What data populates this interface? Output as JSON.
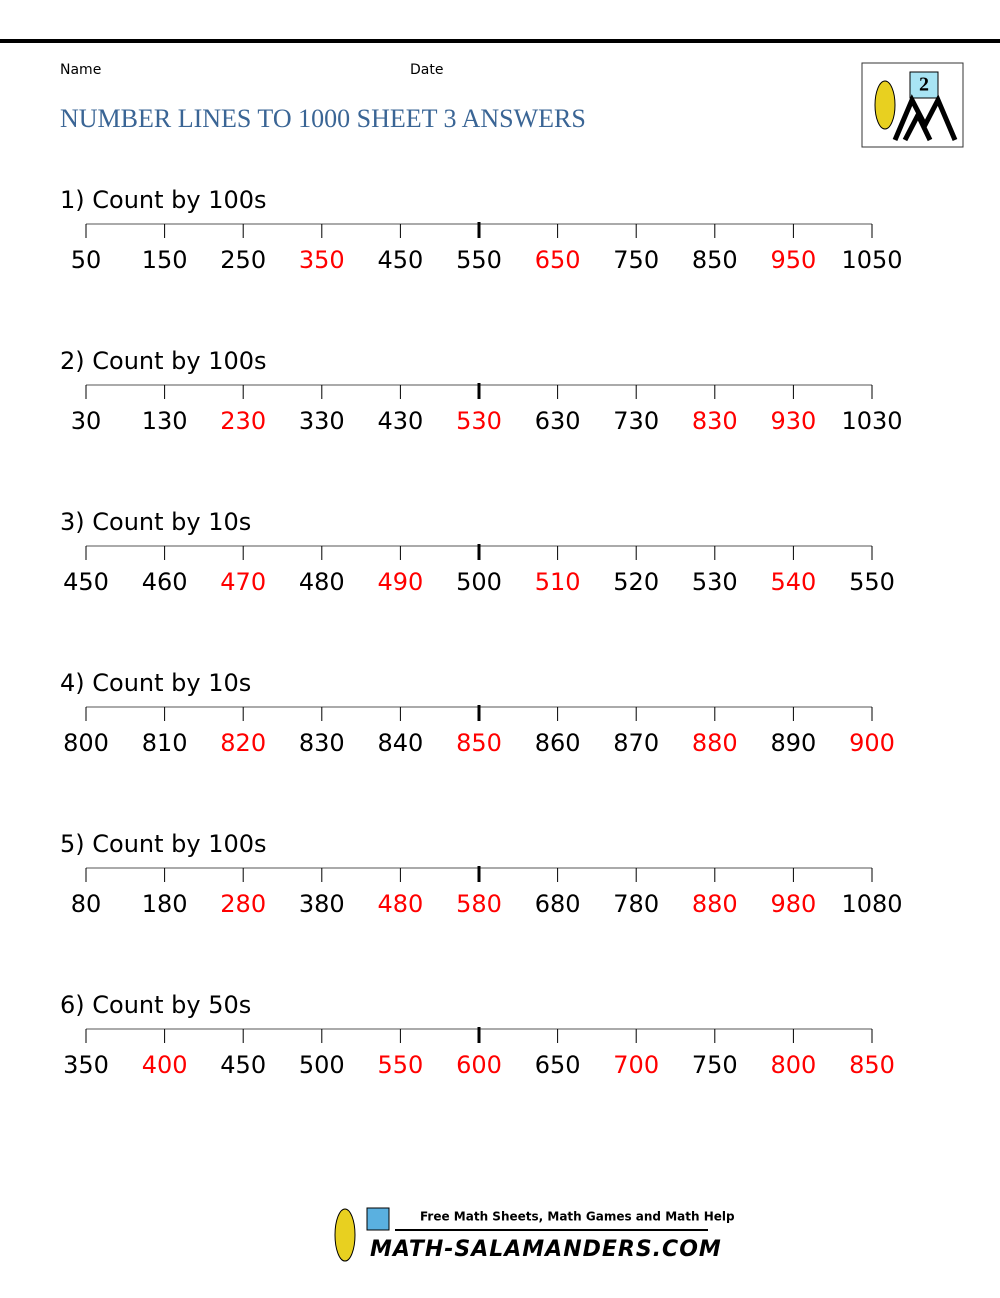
{
  "header": {
    "name_label": "Name",
    "date_label": "Date",
    "title": "NUMBER LINES TO 1000 SHEET 3 ANSWERS",
    "logo_digit": "2"
  },
  "problems": [
    {
      "heading": "1) Count by 100s",
      "numbers": [
        {
          "value": 50,
          "answer": false
        },
        {
          "value": 150,
          "answer": false
        },
        {
          "value": 250,
          "answer": false
        },
        {
          "value": 350,
          "answer": true
        },
        {
          "value": 450,
          "answer": false
        },
        {
          "value": 550,
          "answer": false
        },
        {
          "value": 650,
          "answer": true
        },
        {
          "value": 750,
          "answer": false
        },
        {
          "value": 850,
          "answer": false
        },
        {
          "value": 950,
          "answer": true
        },
        {
          "value": 1050,
          "answer": false
        }
      ]
    },
    {
      "heading": "2) Count by 100s",
      "numbers": [
        {
          "value": 30,
          "answer": false
        },
        {
          "value": 130,
          "answer": false
        },
        {
          "value": 230,
          "answer": true
        },
        {
          "value": 330,
          "answer": false
        },
        {
          "value": 430,
          "answer": false
        },
        {
          "value": 530,
          "answer": true
        },
        {
          "value": 630,
          "answer": false
        },
        {
          "value": 730,
          "answer": false
        },
        {
          "value": 830,
          "answer": true
        },
        {
          "value": 930,
          "answer": true
        },
        {
          "value": 1030,
          "answer": false
        }
      ]
    },
    {
      "heading": "3) Count by 10s",
      "numbers": [
        {
          "value": 450,
          "answer": false
        },
        {
          "value": 460,
          "answer": false
        },
        {
          "value": 470,
          "answer": true
        },
        {
          "value": 480,
          "answer": false
        },
        {
          "value": 490,
          "answer": true
        },
        {
          "value": 500,
          "answer": false
        },
        {
          "value": 510,
          "answer": true
        },
        {
          "value": 520,
          "answer": false
        },
        {
          "value": 530,
          "answer": false
        },
        {
          "value": 540,
          "answer": true
        },
        {
          "value": 550,
          "answer": false
        }
      ]
    },
    {
      "heading": "4) Count by 10s",
      "numbers": [
        {
          "value": 800,
          "answer": false
        },
        {
          "value": 810,
          "answer": false
        },
        {
          "value": 820,
          "answer": true
        },
        {
          "value": 830,
          "answer": false
        },
        {
          "value": 840,
          "answer": false
        },
        {
          "value": 850,
          "answer": true
        },
        {
          "value": 860,
          "answer": false
        },
        {
          "value": 870,
          "answer": false
        },
        {
          "value": 880,
          "answer": true
        },
        {
          "value": 890,
          "answer": false
        },
        {
          "value": 900,
          "answer": true
        }
      ]
    },
    {
      "heading": "5) Count by 100s",
      "numbers": [
        {
          "value": 80,
          "answer": false
        },
        {
          "value": 180,
          "answer": false
        },
        {
          "value": 280,
          "answer": true
        },
        {
          "value": 380,
          "answer": false
        },
        {
          "value": 480,
          "answer": true
        },
        {
          "value": 580,
          "answer": true
        },
        {
          "value": 680,
          "answer": false
        },
        {
          "value": 780,
          "answer": false
        },
        {
          "value": 880,
          "answer": true
        },
        {
          "value": 980,
          "answer": true
        },
        {
          "value": 1080,
          "answer": false
        }
      ]
    },
    {
      "heading": "6) Count by 50s",
      "numbers": [
        {
          "value": 350,
          "answer": false
        },
        {
          "value": 400,
          "answer": true
        },
        {
          "value": 450,
          "answer": false
        },
        {
          "value": 500,
          "answer": false
        },
        {
          "value": 550,
          "answer": true
        },
        {
          "value": 600,
          "answer": true
        },
        {
          "value": 650,
          "answer": false
        },
        {
          "value": 700,
          "answer": true
        },
        {
          "value": 750,
          "answer": false
        },
        {
          "value": 800,
          "answer": true
        },
        {
          "value": 850,
          "answer": true
        }
      ]
    }
  ],
  "footer": {
    "tagline": "Free Math Sheets, Math Games and Math Help",
    "site": "MATH-SALAMANDERS.COM"
  }
}
